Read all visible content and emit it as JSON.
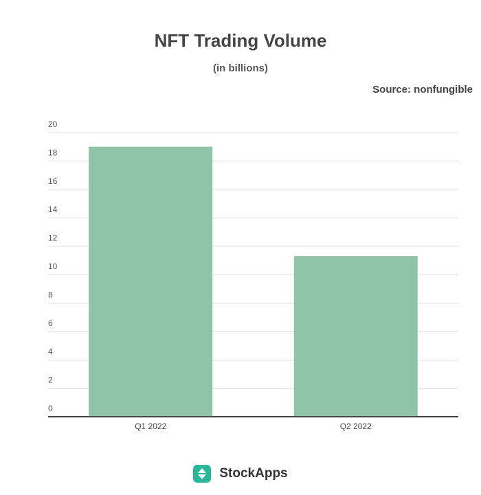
{
  "chart_data": {
    "type": "bar",
    "title": "NFT Trading Volume",
    "subtitle": "(in billions)",
    "source": "Source: nonfungible",
    "categories": [
      "Q1 2022",
      "Q2 2022"
    ],
    "values": [
      19.0,
      11.3
    ],
    "ylim": [
      0,
      20
    ],
    "yticks": [
      0,
      2,
      4,
      6,
      8,
      10,
      12,
      14,
      16,
      18,
      20
    ],
    "grid": true,
    "bar_color": "#8fc4a8",
    "gridline_color": "#dddddd",
    "axis_color": "#444444"
  },
  "footer": {
    "brand": "StockApps",
    "logo_icon": "up-down-arrows-icon",
    "logo_color": "#2bb59b"
  }
}
